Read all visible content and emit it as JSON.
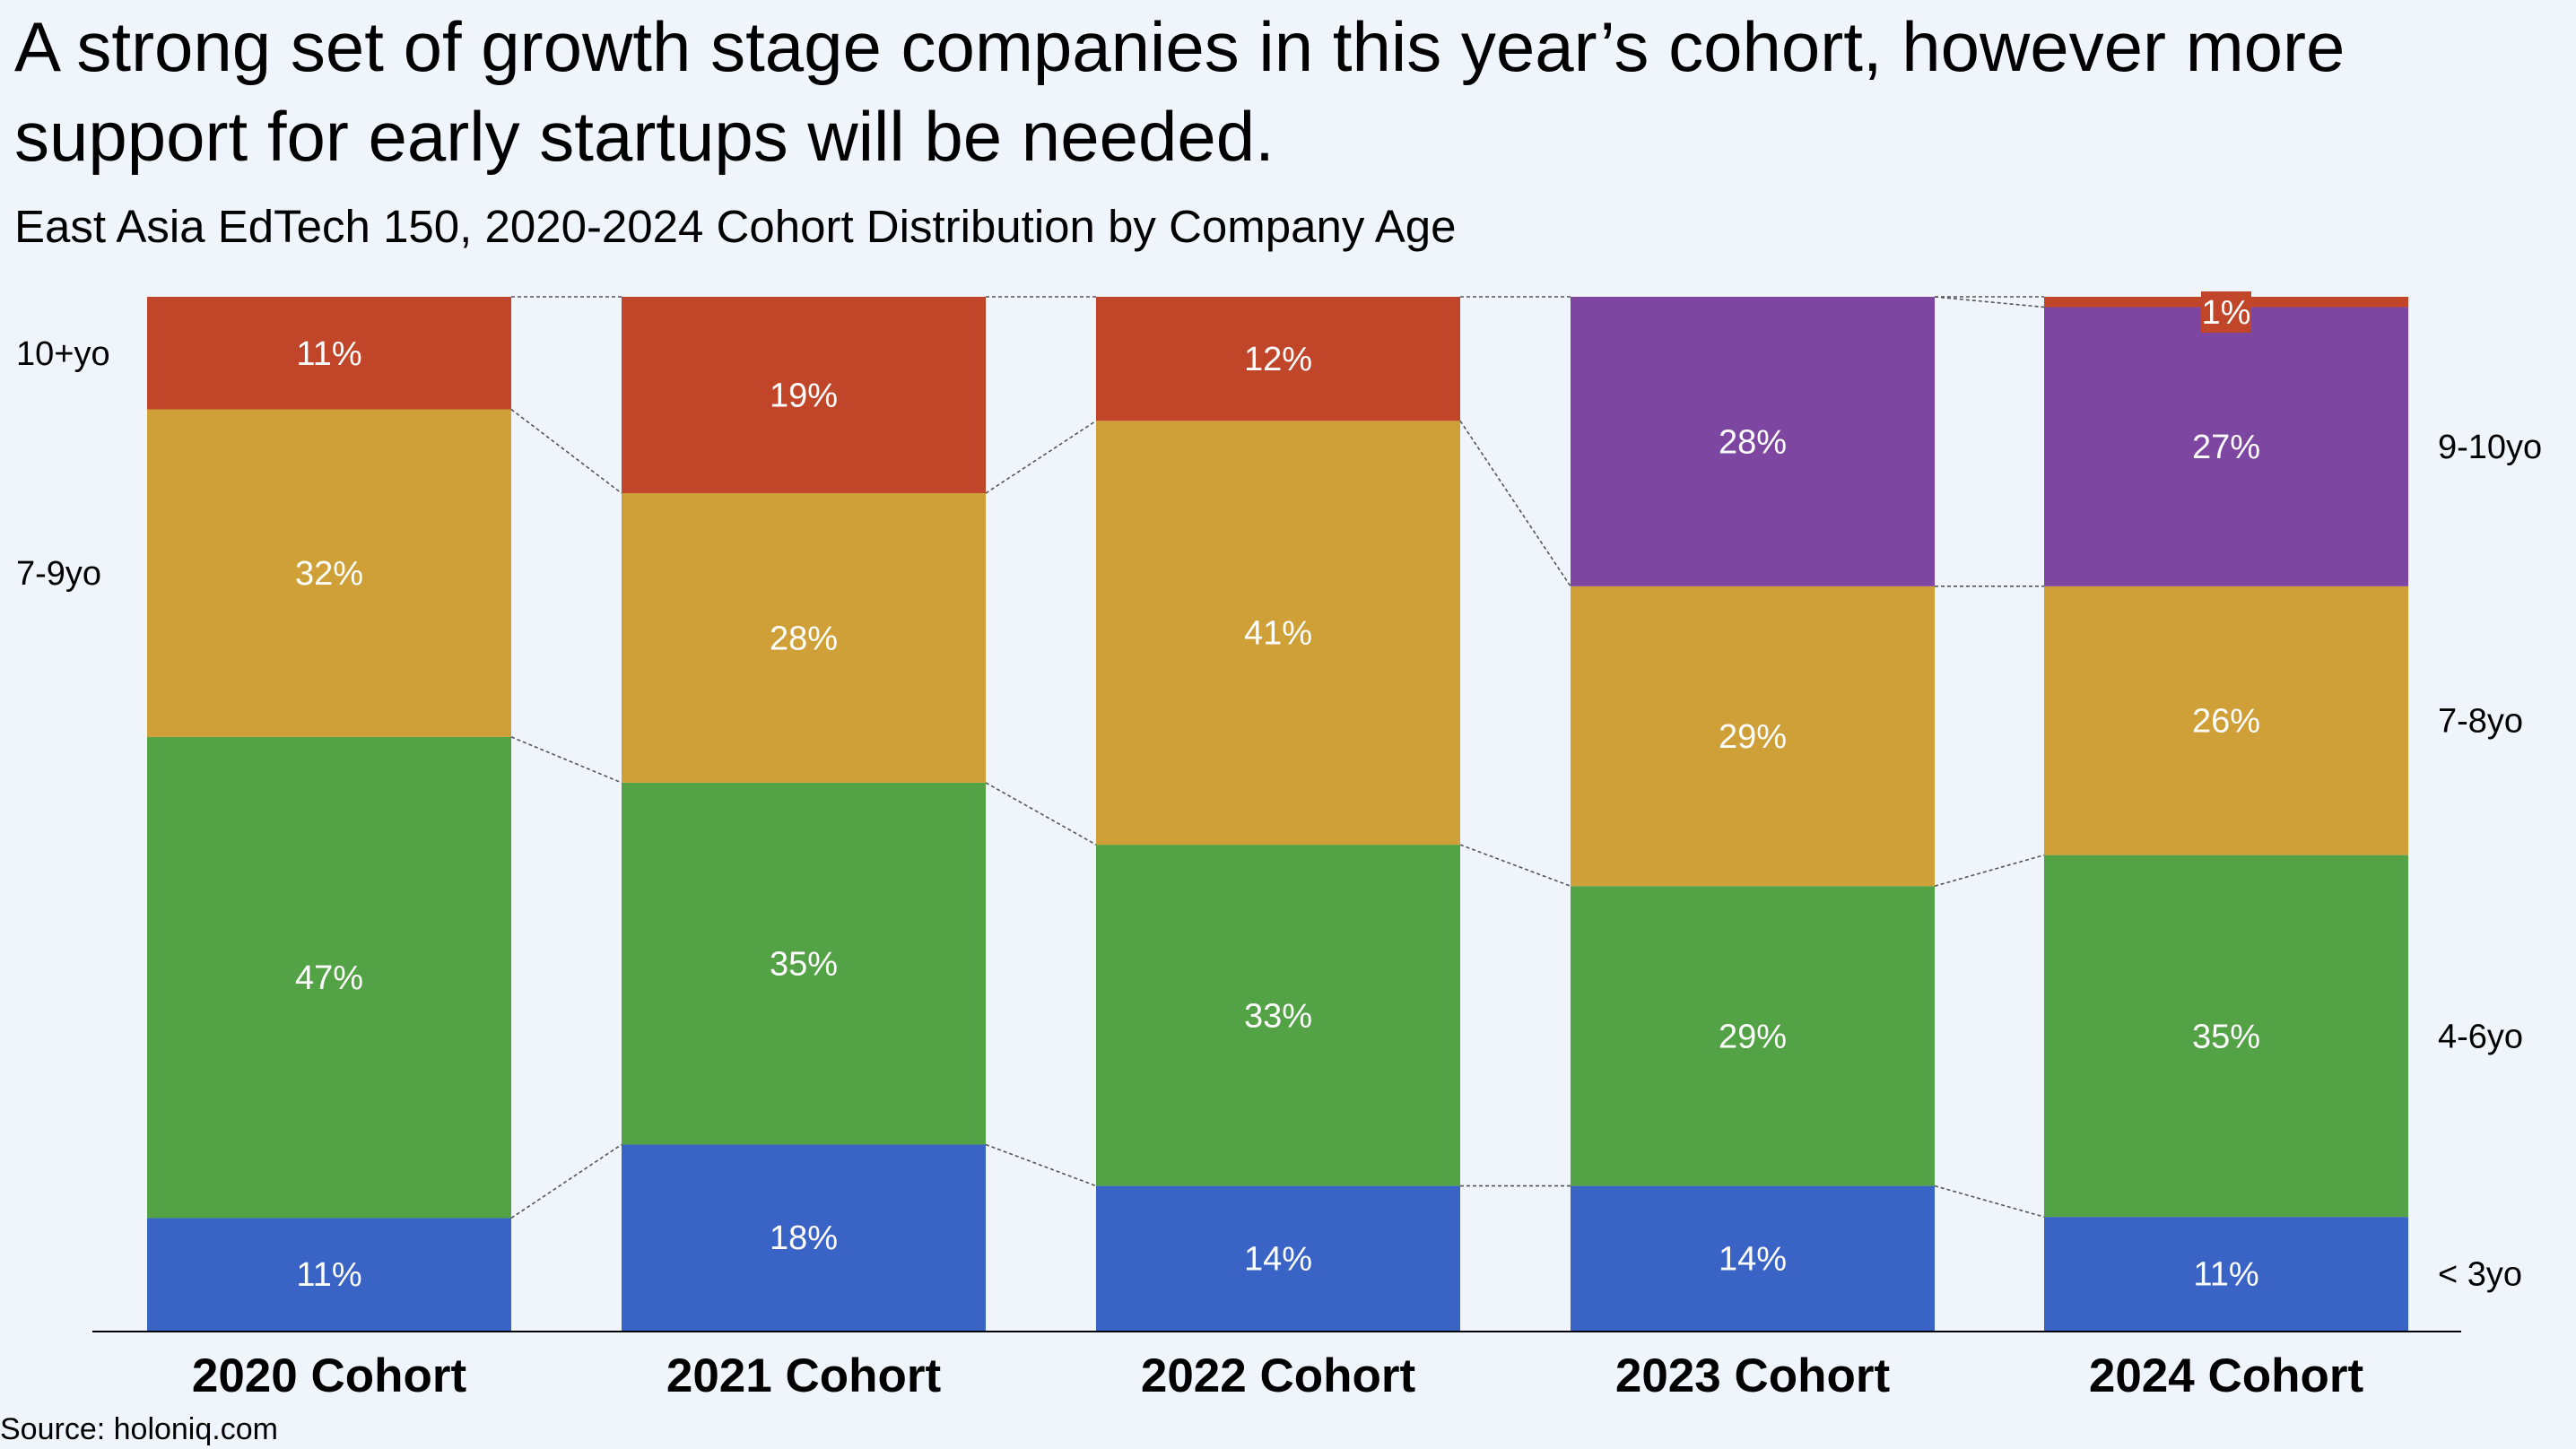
{
  "title": "A strong set of growth stage companies in this year’s cohort, however more support for early startups will be needed.",
  "subtitle": "East Asia EdTech 150, 2020-2024 Cohort Distribution by Company Age",
  "source": "Source: holoniq.com",
  "colors": {
    "lt3": "#3a63c6",
    "4to6": "#54a246",
    "7to8": "#d0a038",
    "9to10": "#7d46a0",
    "10plus": "#c14528",
    "connector": "#555555",
    "axis": "#000000"
  },
  "chart_data": {
    "type": "bar",
    "stacked": true,
    "normalized": true,
    "categories": [
      "2020 Cohort",
      "2021 Cohort",
      "2022 Cohort",
      "2023 Cohort",
      "2024 Cohort"
    ],
    "series": [
      {
        "name": "< 3yo",
        "color": "#3a63c6",
        "values": [
          11,
          18,
          14,
          14,
          11
        ],
        "labels": [
          "11%",
          "18%",
          "14%",
          "14%",
          "11%"
        ]
      },
      {
        "name": "4-6yo",
        "color": "#54a246",
        "values": [
          47,
          35,
          33,
          29,
          35
        ],
        "labels": [
          "47%",
          "35%",
          "33%",
          "29%",
          "35%"
        ]
      },
      {
        "name": "7-9yo",
        "color": "#d0a038",
        "values": [
          32,
          28,
          41,
          null,
          null
        ],
        "labels": [
          "32%",
          "28%",
          "41%",
          "",
          ""
        ]
      },
      {
        "name": "7-8yo",
        "color": "#d0a038",
        "values": [
          null,
          null,
          null,
          29,
          26
        ],
        "labels": [
          "",
          "",
          "",
          "29%",
          "26%"
        ]
      },
      {
        "name": "9-10yo",
        "color": "#7d46a0",
        "values": [
          null,
          null,
          null,
          28,
          27
        ],
        "labels": [
          "",
          "",
          "",
          "28%",
          "27%"
        ]
      },
      {
        "name": "10+yo",
        "color": "#c14528",
        "values": [
          11,
          19,
          12,
          null,
          1
        ],
        "labels": [
          "11%",
          "19%",
          "12%",
          "",
          "1%"
        ]
      }
    ],
    "left_legend": [
      "10+yo",
      "7-9yo"
    ],
    "right_legend": [
      "9-10yo",
      "7-8yo",
      "4-6yo",
      "< 3yo"
    ],
    "ylim": [
      0,
      100
    ]
  }
}
